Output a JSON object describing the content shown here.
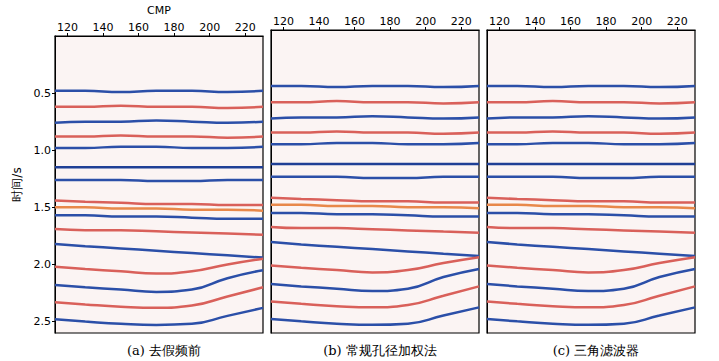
{
  "chart_data": [
    {
      "type": "line",
      "title": "(a) 去假频前",
      "xlabel": "CMP",
      "ylabel": "时间/s",
      "xlim": [
        113,
        230
      ],
      "xticks": [
        120,
        140,
        160,
        180,
        200,
        220
      ],
      "ylim": [
        0,
        2.6
      ],
      "yticks": [
        0.5,
        {
          "value": 1,
          "label": "1.0"
        },
        1.5,
        {
          "value": 2,
          "label": "2.0"
        },
        2.5
      ],
      "grid": false,
      "line_style": "solid",
      "x": [
        113,
        130,
        150,
        170,
        190,
        210,
        230
      ],
      "series": [
        {
          "color": "#2b4fa8",
          "values": [
            0.48,
            0.48,
            0.49,
            0.48,
            0.48,
            0.49,
            0.48
          ]
        },
        {
          "color": "#d9605a",
          "values": [
            0.62,
            0.62,
            0.61,
            0.62,
            0.62,
            0.63,
            0.62
          ]
        },
        {
          "color": "#2b4fa8",
          "values": [
            0.76,
            0.75,
            0.75,
            0.74,
            0.75,
            0.76,
            0.75
          ]
        },
        {
          "color": "#d9605a",
          "values": [
            0.88,
            0.88,
            0.87,
            0.88,
            0.88,
            0.89,
            0.88
          ]
        },
        {
          "color": "#2b4fa8",
          "values": [
            0.98,
            0.98,
            0.97,
            0.97,
            0.98,
            0.98,
            0.97
          ]
        },
        {
          "color": "#1f3f95",
          "values": [
            1.15,
            1.15,
            1.15,
            1.15,
            1.15,
            1.15,
            1.15
          ]
        },
        {
          "color": "#2b4fa8",
          "values": [
            1.26,
            1.26,
            1.26,
            1.27,
            1.27,
            1.26,
            1.26
          ]
        },
        {
          "color": "#d9605a",
          "values": [
            1.44,
            1.45,
            1.46,
            1.47,
            1.47,
            1.48,
            1.48
          ]
        },
        {
          "color": "#e8884a",
          "values": [
            1.5,
            1.5,
            1.51,
            1.51,
            1.52,
            1.52,
            1.53
          ]
        },
        {
          "color": "#2b4fa8",
          "values": [
            1.57,
            1.57,
            1.58,
            1.58,
            1.59,
            1.6,
            1.6
          ]
        },
        {
          "color": "#d9605a",
          "values": [
            1.69,
            1.7,
            1.7,
            1.71,
            1.72,
            1.73,
            1.74
          ]
        },
        {
          "color": "#2b4fa8",
          "values": [
            1.82,
            1.84,
            1.86,
            1.88,
            1.9,
            1.92,
            1.94
          ]
        },
        {
          "color": "#d9605a",
          "values": [
            2.02,
            2.04,
            2.06,
            2.08,
            2.06,
            2.0,
            1.95
          ]
        },
        {
          "color": "#2b4fa8",
          "values": [
            2.18,
            2.2,
            2.22,
            2.24,
            2.22,
            2.12,
            2.05
          ]
        },
        {
          "color": "#d9605a",
          "values": [
            2.33,
            2.35,
            2.37,
            2.38,
            2.36,
            2.28,
            2.2
          ]
        },
        {
          "color": "#2b4fa8",
          "values": [
            2.48,
            2.5,
            2.52,
            2.53,
            2.52,
            2.45,
            2.38
          ]
        }
      ]
    },
    {
      "type": "line",
      "title": "(b) 常规孔径加权法",
      "xlim": [
        113,
        230
      ],
      "xticks": [
        120,
        140,
        160,
        180,
        200,
        220
      ],
      "ylim": [
        0,
        2.6
      ],
      "yticks": [
        0.5,
        {
          "value": 1,
          "label": "1.0"
        },
        1.5,
        {
          "value": 2,
          "label": "2.0"
        },
        2.5
      ],
      "grid": false,
      "line_style": "solid",
      "tick_labels": "x",
      "x": [
        113,
        130,
        150,
        170,
        190,
        210,
        230
      ],
      "series": [
        {
          "color": "#2b4fa8",
          "values": [
            0.48,
            0.48,
            0.49,
            0.48,
            0.48,
            0.49,
            0.48
          ]
        },
        {
          "color": "#d9605a",
          "values": [
            0.62,
            0.62,
            0.61,
            0.62,
            0.62,
            0.63,
            0.62
          ]
        },
        {
          "color": "#2b4fa8",
          "values": [
            0.76,
            0.75,
            0.75,
            0.74,
            0.75,
            0.76,
            0.75
          ]
        },
        {
          "color": "#d9605a",
          "values": [
            0.88,
            0.88,
            0.87,
            0.88,
            0.88,
            0.89,
            0.88
          ]
        },
        {
          "color": "#2b4fa8",
          "values": [
            0.98,
            0.98,
            0.97,
            0.97,
            0.98,
            0.98,
            0.97
          ]
        },
        {
          "color": "#1f3f95",
          "values": [
            1.15,
            1.15,
            1.15,
            1.15,
            1.15,
            1.15,
            1.15
          ]
        },
        {
          "color": "#2b4fa8",
          "values": [
            1.26,
            1.26,
            1.26,
            1.27,
            1.27,
            1.26,
            1.26
          ]
        },
        {
          "color": "#d9605a",
          "values": [
            1.44,
            1.45,
            1.46,
            1.47,
            1.47,
            1.48,
            1.48
          ]
        },
        {
          "color": "#e8884a",
          "values": [
            1.5,
            1.5,
            1.51,
            1.51,
            1.52,
            1.52,
            1.53
          ]
        },
        {
          "color": "#2b4fa8",
          "values": [
            1.57,
            1.57,
            1.58,
            1.58,
            1.59,
            1.6,
            1.6
          ]
        },
        {
          "color": "#d9605a",
          "values": [
            1.69,
            1.7,
            1.7,
            1.71,
            1.72,
            1.73,
            1.74
          ]
        },
        {
          "color": "#2b4fa8",
          "values": [
            1.82,
            1.84,
            1.86,
            1.88,
            1.9,
            1.92,
            1.94
          ]
        },
        {
          "color": "#d9605a",
          "values": [
            2.02,
            2.04,
            2.06,
            2.08,
            2.06,
            2.0,
            1.95
          ]
        },
        {
          "color": "#2b4fa8",
          "values": [
            2.18,
            2.2,
            2.22,
            2.24,
            2.22,
            2.12,
            2.05
          ]
        },
        {
          "color": "#d9605a",
          "values": [
            2.33,
            2.35,
            2.37,
            2.38,
            2.36,
            2.28,
            2.2
          ]
        },
        {
          "color": "#2b4fa8",
          "values": [
            2.48,
            2.5,
            2.52,
            2.53,
            2.52,
            2.45,
            2.38
          ]
        }
      ]
    },
    {
      "type": "line",
      "title": "(c) 三角滤波器",
      "xlim": [
        113,
        230
      ],
      "xticks": [
        120,
        140,
        160,
        180,
        200,
        220
      ],
      "ylim": [
        0,
        2.6
      ],
      "yticks": [
        0.5,
        {
          "value": 1,
          "label": "1.0"
        },
        1.5,
        {
          "value": 2,
          "label": "2.0"
        },
        2.5
      ],
      "grid": false,
      "line_style": "solid",
      "tick_labels": "x",
      "x": [
        113,
        130,
        150,
        170,
        190,
        210,
        230
      ],
      "series": [
        {
          "color": "#2b4fa8",
          "values": [
            0.48,
            0.48,
            0.49,
            0.48,
            0.48,
            0.49,
            0.48
          ]
        },
        {
          "color": "#d9605a",
          "values": [
            0.62,
            0.62,
            0.61,
            0.62,
            0.62,
            0.63,
            0.62
          ]
        },
        {
          "color": "#2b4fa8",
          "values": [
            0.76,
            0.75,
            0.75,
            0.74,
            0.75,
            0.76,
            0.75
          ]
        },
        {
          "color": "#d9605a",
          "values": [
            0.88,
            0.88,
            0.87,
            0.88,
            0.88,
            0.89,
            0.88
          ]
        },
        {
          "color": "#2b4fa8",
          "values": [
            0.98,
            0.98,
            0.97,
            0.97,
            0.98,
            0.98,
            0.97
          ]
        },
        {
          "color": "#1f3f95",
          "values": [
            1.15,
            1.15,
            1.15,
            1.15,
            1.15,
            1.15,
            1.15
          ]
        },
        {
          "color": "#2b4fa8",
          "values": [
            1.26,
            1.26,
            1.26,
            1.27,
            1.27,
            1.26,
            1.26
          ]
        },
        {
          "color": "#d9605a",
          "values": [
            1.44,
            1.45,
            1.46,
            1.47,
            1.47,
            1.48,
            1.48
          ]
        },
        {
          "color": "#e8884a",
          "values": [
            1.5,
            1.5,
            1.51,
            1.51,
            1.52,
            1.52,
            1.53
          ]
        },
        {
          "color": "#2b4fa8",
          "values": [
            1.57,
            1.57,
            1.58,
            1.58,
            1.59,
            1.6,
            1.6
          ]
        },
        {
          "color": "#d9605a",
          "values": [
            1.69,
            1.7,
            1.7,
            1.71,
            1.72,
            1.73,
            1.74
          ]
        },
        {
          "color": "#2b4fa8",
          "values": [
            1.82,
            1.84,
            1.86,
            1.88,
            1.9,
            1.92,
            1.94
          ]
        },
        {
          "color": "#d9605a",
          "values": [
            2.02,
            2.04,
            2.06,
            2.08,
            2.06,
            2.0,
            1.95
          ]
        },
        {
          "color": "#2b4fa8",
          "values": [
            2.18,
            2.2,
            2.22,
            2.24,
            2.22,
            2.12,
            2.05
          ]
        },
        {
          "color": "#d9605a",
          "values": [
            2.33,
            2.35,
            2.37,
            2.38,
            2.36,
            2.28,
            2.2
          ]
        },
        {
          "color": "#2b4fa8",
          "values": [
            2.48,
            2.5,
            2.52,
            2.53,
            2.52,
            2.45,
            2.38
          ]
        }
      ]
    }
  ]
}
